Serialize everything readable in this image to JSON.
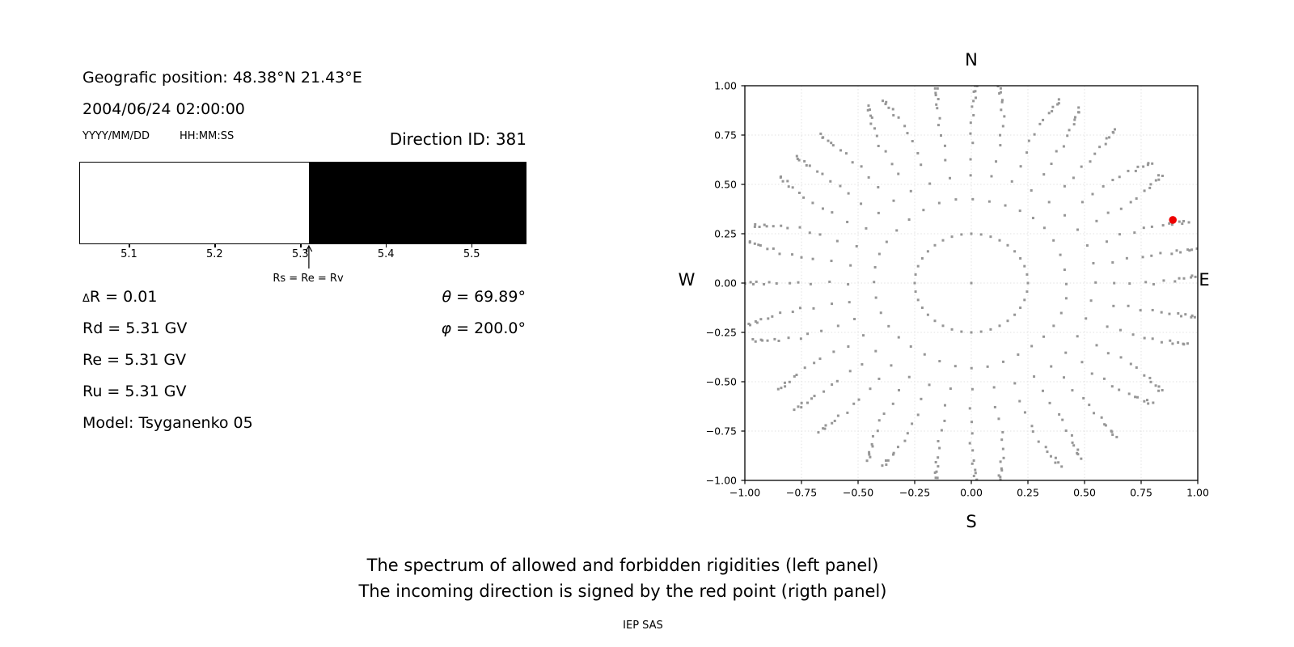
{
  "header": {
    "geo_position": "Geografic position: 48.38°N 21.43°E",
    "datetime": "2004/06/24 02:00:00",
    "date_format_label": "YYYY/MM/DD",
    "time_format_label": "HH:MM:SS",
    "direction_id": "Direction ID: 381"
  },
  "info_panel": {
    "left_lines": [
      {
        "small_prefix": "Δ",
        "text": "R = 0.01"
      },
      {
        "text": "Rd = 5.31 GV"
      },
      {
        "text": "Re = 5.31 GV"
      },
      {
        "text": "Ru = 5.31 GV"
      },
      {
        "text": "Model: Tsyganenko 05"
      }
    ],
    "right_lines": [
      {
        "symbol": "θ",
        "text": " = 69.89°"
      },
      {
        "symbol": "φ",
        "text": " = 200.0°"
      }
    ]
  },
  "footer": {
    "caption_line1": "The spectrum of allowed and forbidden rigidities (left panel)",
    "caption_line2": "The incoming direction is signed by the red point (rigth panel)",
    "credit": "IEP SAS"
  },
  "chart_data": [
    {
      "type": "bar",
      "panel": "left-spectrum",
      "title": "",
      "x_range": [
        5.042,
        5.564
      ],
      "x_tick_labels": [
        "5.1",
        "5.2",
        "5.3",
        "5.4",
        "5.5"
      ],
      "x_tick_values": [
        5.1,
        5.2,
        5.3,
        5.4,
        5.5
      ],
      "segments": [
        {
          "name": "allowed",
          "from": 5.042,
          "to": 5.31,
          "color": "#ffffff"
        },
        {
          "name": "forbidden",
          "from": 5.31,
          "to": 5.564,
          "color": "#000000"
        }
      ],
      "annotation": {
        "text": "Rs = Re = Rv",
        "x": 5.31
      }
    },
    {
      "type": "scatter",
      "panel": "right-directions",
      "xlim": [
        -1,
        1
      ],
      "ylim": [
        -1,
        1
      ],
      "grid": true,
      "x_tick_values": [
        -1,
        -0.75,
        -0.5,
        -0.25,
        0,
        0.25,
        0.5,
        0.75,
        1
      ],
      "x_tick_labels": [
        "−1.00",
        "−0.75",
        "−0.50",
        "−0.25",
        "0.00",
        "0.25",
        "0.50",
        "0.75",
        "1.00"
      ],
      "y_tick_values": [
        -1,
        -0.75,
        -0.5,
        -0.25,
        0,
        0.25,
        0.5,
        0.75,
        1
      ],
      "y_tick_labels": [
        "−1.00",
        "−0.75",
        "−0.50",
        "−0.25",
        "0.00",
        "0.25",
        "0.50",
        "0.75",
        "1.00"
      ],
      "compass": {
        "top": "N",
        "bottom": "S",
        "left": "W",
        "right": "E"
      },
      "spokes": {
        "count": 36,
        "angle_step_deg": 10,
        "radii": [
          0.25,
          0.425,
          0.543,
          0.632,
          0.704,
          0.764,
          0.807,
          0.854,
          0.893,
          0.921,
          0.943,
          0.964,
          0.979,
          0.993,
          1.005
        ],
        "center_dot": true,
        "dot_color": "#969696",
        "tip_curl": 0.3,
        "jitter": 0.0065
      },
      "red_point": {
        "x": 0.89,
        "y": 0.32,
        "color": "#ee0000"
      }
    }
  ]
}
